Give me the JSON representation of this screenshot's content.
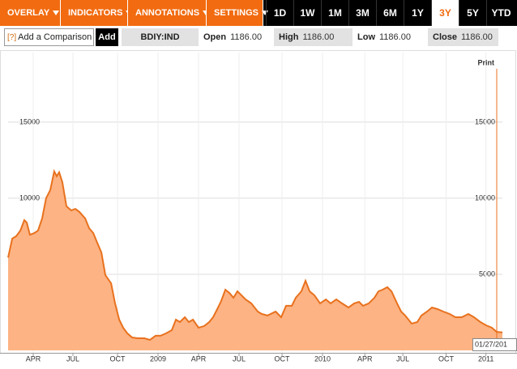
{
  "toolbar": {
    "menus": [
      "OVERLAY",
      "INDICATORS",
      "ANNOTATIONS",
      "SETTINGS"
    ],
    "ranges": [
      "1D",
      "1W",
      "1M",
      "3M",
      "6M",
      "1Y",
      "3Y",
      "5Y",
      "YTD"
    ],
    "selected_range": "3Y"
  },
  "quote_bar": {
    "help": "[?]",
    "comparison_placeholder": "Add a Comparison",
    "add_button": "Add",
    "ticker": "BDIY:IND",
    "fields": [
      {
        "label": "Open",
        "value": "1186.00"
      },
      {
        "label": "High",
        "value": "1186.00"
      },
      {
        "label": "Low",
        "value": "1186.00"
      },
      {
        "label": "Close",
        "value": "1186.00"
      }
    ]
  },
  "print_label": "Print",
  "chart_data": {
    "type": "area",
    "line_color": "#e8711e",
    "fill_color": "#fdb383",
    "grid": true,
    "date_label": "01/27/201",
    "x": [
      0,
      0.3,
      0.59,
      0.89,
      1.18,
      1.36,
      1.59,
      1.89,
      2.18,
      2.48,
      2.77,
      3.07,
      3.36,
      3.54,
      3.72,
      3.95,
      4.25,
      4.6,
      4.9,
      5.19,
      5.61,
      5.9,
      6.2,
      6.49,
      6.79,
      7.08,
      7.5,
      7.79,
      8.09,
      8.38,
      8.68,
      9.03,
      9.44,
      9.92,
      10.33,
      10.74,
      11.1,
      11.51,
      11.92,
      12.22,
      12.51,
      12.87,
      13.16,
      13.46,
      13.87,
      14.28,
      14.64,
      14.93,
      15.23,
      15.52,
      15.82,
      16.11,
      16.41,
      16.7,
      17.0,
      17.29,
      17.71,
      18.18,
      18.47,
      18.89,
      19.48,
      19.89,
      20.24,
      20.66,
      20.95,
      21.36,
      21.66,
      21.96,
      22.31,
      22.72,
      23.14,
      23.49,
      23.9,
      24.32,
      24.79,
      25.2,
      25.56,
      25.85,
      26.26,
      26.68,
      26.97,
      27.27,
      27.62,
      27.92,
      28.33,
      28.62,
      28.92,
      29.39,
      29.8,
      30.1,
      30.51,
      30.87,
      31.28,
      31.69,
      32.16,
      32.58,
      33.04,
      33.52,
      33.93,
      34.4,
      34.81,
      35.23,
      35.58,
      36
    ],
    "values": [
      6100,
      7340,
      7500,
      7870,
      8560,
      8400,
      7600,
      7700,
      7870,
      8670,
      10000,
      10530,
      11760,
      11440,
      11700,
      11060,
      9470,
      9200,
      9300,
      9100,
      8670,
      8030,
      7710,
      7070,
      6440,
      4950,
      4410,
      3090,
      2020,
      1490,
      1120,
      850,
      800,
      800,
      690,
      960,
      960,
      1120,
      1330,
      2020,
      1860,
      2180,
      1860,
      2020,
      1490,
      1600,
      1860,
      2180,
      2710,
      3250,
      3990,
      3780,
      3460,
      3880,
      3620,
      3350,
      3090,
      2550,
      2390,
      2290,
      2550,
      2180,
      2930,
      2930,
      3460,
      3880,
      4570,
      3880,
      3620,
      3090,
      3350,
      3090,
      3350,
      3090,
      2820,
      3090,
      3190,
      2930,
      3090,
      3460,
      3880,
      3990,
      4150,
      3880,
      3090,
      2550,
      2290,
      1760,
      1860,
      2290,
      2550,
      2820,
      2710,
      2550,
      2390,
      2180,
      2180,
      2390,
      2180,
      1860,
      1650,
      1490,
      1220,
      1186
    ],
    "xlim": [
      0,
      36
    ],
    "xticks": [
      {
        "value": 1.83,
        "label": "APR"
      },
      {
        "value": 4.72,
        "label": "JUL"
      },
      {
        "value": 7.97,
        "label": "OCT"
      },
      {
        "value": 10.92,
        "label": "2009"
      },
      {
        "value": 13.87,
        "label": "APR"
      },
      {
        "value": 16.82,
        "label": "JUL"
      },
      {
        "value": 19.95,
        "label": "OCT"
      },
      {
        "value": 22.9,
        "label": "2010"
      },
      {
        "value": 25.98,
        "label": "APR"
      },
      {
        "value": 28.75,
        "label": "JUL"
      },
      {
        "value": 31.9,
        "label": "OCT"
      },
      {
        "value": 34.8,
        "label": "2011"
      }
    ],
    "ylim": [
      0,
      19300
    ],
    "yticks": [
      5000,
      10000,
      15000
    ]
  }
}
